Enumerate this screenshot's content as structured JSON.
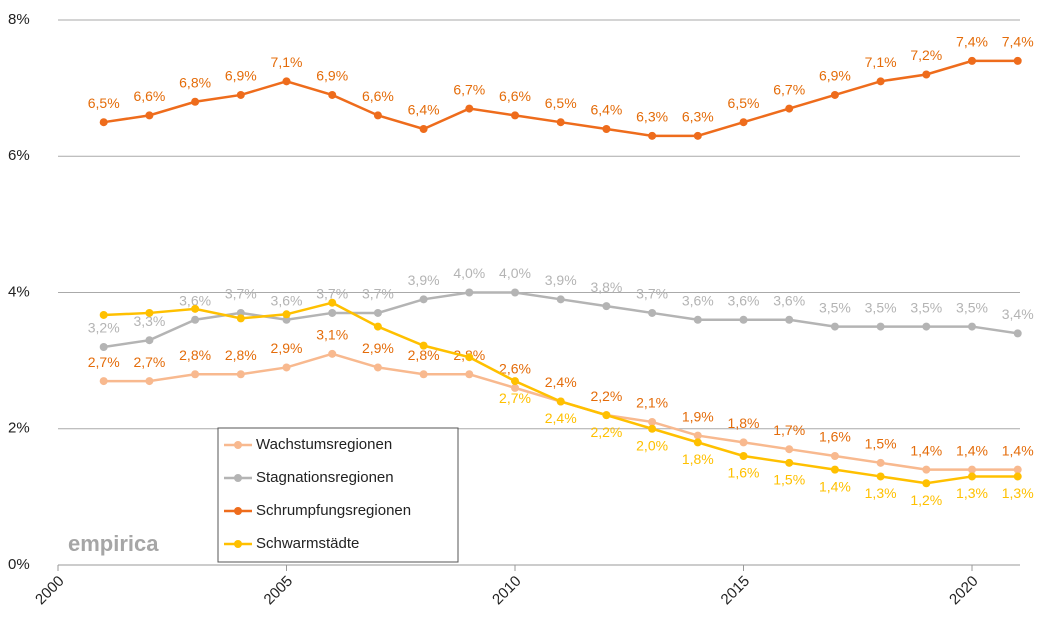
{
  "chart_data": {
    "type": "line",
    "watermark": "empirica",
    "x": [
      2001,
      2002,
      2003,
      2004,
      2005,
      2006,
      2007,
      2008,
      2009,
      2010,
      2011,
      2012,
      2013,
      2014,
      2015,
      2016,
      2017,
      2018,
      2019,
      2020,
      2021
    ],
    "xlim": [
      2000,
      2021.05
    ],
    "xticks": [
      2000,
      2005,
      2010,
      2015,
      2020
    ],
    "ylim": [
      0,
      8
    ],
    "yticks": [
      {
        "value": 0,
        "label": "0%"
      },
      {
        "value": 2,
        "label": "2%"
      },
      {
        "value": 4,
        "label": "4%"
      },
      {
        "value": 6,
        "label": "6%"
      },
      {
        "value": 8,
        "label": "8%"
      }
    ],
    "grid": true,
    "legend": "bottom-left",
    "series": [
      {
        "name": "Wachstumsregionen",
        "color": "#f8b98f",
        "label_color": "#e46c0a",
        "label_position": "above",
        "values": [
          2.7,
          2.7,
          2.8,
          2.8,
          2.9,
          3.1,
          2.9,
          2.8,
          2.8,
          2.6,
          2.4,
          2.2,
          2.1,
          1.9,
          1.8,
          1.7,
          1.6,
          1.5,
          1.4,
          1.4,
          1.4
        ],
        "value_labels": [
          "2,7%",
          "2,7%",
          "2,8%",
          "2,8%",
          "2,9%",
          "3,1%",
          "2,9%",
          "2,8%",
          "2,8%",
          "2,6%",
          "2,4%",
          "2,2%",
          "2,1%",
          "1,9%",
          "1,8%",
          "1,7%",
          "1,6%",
          "1,5%",
          "1,4%",
          "1,4%",
          "1,4%"
        ]
      },
      {
        "name": "Stagnationsregionen",
        "color": "#b4b4b4",
        "label_color": "#b4b4b4",
        "label_position": "above",
        "values": [
          3.2,
          3.3,
          3.6,
          3.7,
          3.6,
          3.7,
          3.7,
          3.9,
          4.0,
          4.0,
          3.9,
          3.8,
          3.7,
          3.6,
          3.6,
          3.6,
          3.5,
          3.5,
          3.5,
          3.5,
          3.4
        ],
        "value_labels": [
          "3,2%",
          "3,3%",
          "3,6%",
          "3,7%",
          "3,6%",
          "3,7%",
          "3,7%",
          "3,9%",
          "4,0%",
          "4,0%",
          "3,9%",
          "3,8%",
          "3,7%",
          "3,6%",
          "3,6%",
          "3,6%",
          "3,5%",
          "3,5%",
          "3,5%",
          "3,5%",
          "3,4%"
        ]
      },
      {
        "name": "Schrumpfungsregionen",
        "color": "#ee6c1c",
        "label_color": "#e46c0a",
        "label_position": "above",
        "values": [
          6.5,
          6.6,
          6.8,
          6.9,
          7.1,
          6.9,
          6.6,
          6.4,
          6.7,
          6.6,
          6.5,
          6.4,
          6.3,
          6.3,
          6.5,
          6.7,
          6.9,
          7.1,
          7.2,
          7.4,
          7.4
        ],
        "value_labels": [
          "6,5%",
          "6,6%",
          "6,8%",
          "6,9%",
          "7,1%",
          "6,9%",
          "6,6%",
          "6,4%",
          "6,7%",
          "6,6%",
          "6,5%",
          "6,4%",
          "6,3%",
          "6,3%",
          "6,5%",
          "6,7%",
          "6,9%",
          "7,1%",
          "7,2%",
          "7,4%",
          "7,4%"
        ]
      },
      {
        "name": "Schwarmstädte",
        "color": "#ffc000",
        "label_color": "#ffc000",
        "label_position": "below",
        "values": [
          3.67,
          3.7,
          3.76,
          3.62,
          3.68,
          3.85,
          3.5,
          3.22,
          3.05,
          2.7,
          2.4,
          2.2,
          2.0,
          1.8,
          1.6,
          1.5,
          1.4,
          1.3,
          1.2,
          1.3,
          1.3
        ],
        "value_labels": [
          null,
          null,
          null,
          null,
          null,
          null,
          null,
          null,
          null,
          "2,7%",
          "2,4%",
          "2,2%",
          "2,0%",
          "1,8%",
          "1,6%",
          "1,5%",
          "1,4%",
          "1,3%",
          "1,2%",
          "1,3%",
          "1,3%"
        ]
      }
    ]
  }
}
